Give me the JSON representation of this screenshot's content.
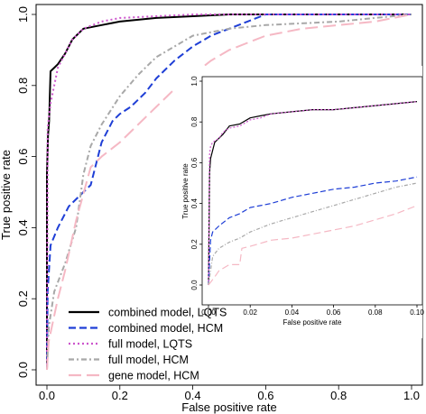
{
  "chart_data": [
    {
      "type": "line",
      "title": "",
      "xlabel": "False positive rate",
      "ylabel": "True positive rate",
      "xlim": [
        0.0,
        1.0
      ],
      "ylim": [
        0.0,
        1.0
      ],
      "xticks": [
        "0.0",
        "0.2",
        "0.4",
        "0.6",
        "0.8",
        "1.0"
      ],
      "yticks": [
        "0.0",
        "0.2",
        "0.4",
        "0.6",
        "0.8",
        "1.0"
      ],
      "grid": false,
      "legend_position": "bottom-left",
      "series": [
        {
          "name": "combined model, LQTS",
          "color": "#000000",
          "dash": "solid",
          "x": [
            0.0,
            0.0,
            0.003,
            0.006,
            0.01,
            0.02,
            0.03,
            0.05,
            0.07,
            0.1,
            0.15,
            0.2,
            0.3,
            0.4,
            0.5,
            0.6,
            0.8,
            1.0
          ],
          "y": [
            0.0,
            0.55,
            0.66,
            0.7,
            0.84,
            0.85,
            0.86,
            0.89,
            0.93,
            0.96,
            0.97,
            0.98,
            0.99,
            0.995,
            1.0,
            1.0,
            1.0,
            1.0
          ]
        },
        {
          "name": "combined model, HCM",
          "color": "#1f3fd6",
          "dash": "8,4",
          "x": [
            0.0,
            0.002,
            0.01,
            0.03,
            0.06,
            0.09,
            0.12,
            0.15,
            0.18,
            0.2,
            0.23,
            0.27,
            0.3,
            0.35,
            0.4,
            0.45,
            0.5,
            0.55,
            0.6,
            0.8,
            1.0
          ],
          "y": [
            0.0,
            0.22,
            0.35,
            0.4,
            0.46,
            0.49,
            0.52,
            0.64,
            0.7,
            0.72,
            0.74,
            0.78,
            0.82,
            0.87,
            0.91,
            0.94,
            0.96,
            0.98,
            1.0,
            1.0,
            1.0
          ]
        },
        {
          "name": "full model, LQTS",
          "color": "#cc55cc",
          "dash": "2,3",
          "x": [
            0.0,
            0.002,
            0.01,
            0.02,
            0.03,
            0.05,
            0.07,
            0.1,
            0.15,
            0.2,
            0.3,
            0.4,
            0.5,
            0.6,
            0.8,
            1.0
          ],
          "y": [
            0.0,
            0.68,
            0.75,
            0.8,
            0.85,
            0.89,
            0.93,
            0.96,
            0.98,
            0.99,
            0.995,
            1.0,
            1.0,
            1.0,
            1.0,
            1.0
          ]
        },
        {
          "name": "full model, HCM",
          "color": "#a8a8a8",
          "dash": "6,3,2,3",
          "x": [
            0.0,
            0.005,
            0.02,
            0.05,
            0.08,
            0.1,
            0.12,
            0.15,
            0.2,
            0.25,
            0.3,
            0.35,
            0.4,
            0.45,
            0.5,
            0.6,
            0.8,
            0.9,
            1.0
          ],
          "y": [
            0.0,
            0.12,
            0.22,
            0.3,
            0.4,
            0.55,
            0.63,
            0.69,
            0.77,
            0.83,
            0.88,
            0.91,
            0.94,
            0.95,
            0.96,
            0.97,
            0.98,
            0.99,
            1.0
          ]
        },
        {
          "name": "gene model, HCM",
          "color": "#f5b8c4",
          "dash": "14,6",
          "x": [
            0.0,
            0.005,
            0.03,
            0.05,
            0.08,
            0.12,
            0.15,
            0.2,
            0.25,
            0.3,
            0.35,
            0.4,
            0.45,
            0.5,
            0.55,
            0.6,
            0.7,
            0.8,
            0.9,
            1.0
          ],
          "y": [
            0.0,
            0.08,
            0.2,
            0.28,
            0.42,
            0.57,
            0.6,
            0.64,
            0.69,
            0.74,
            0.79,
            0.83,
            0.87,
            0.9,
            0.92,
            0.94,
            0.96,
            0.97,
            0.98,
            1.0
          ]
        }
      ]
    },
    {
      "type": "line",
      "title": "",
      "xlabel": "False positive rate",
      "ylabel": "True positive rate",
      "xlim": [
        0.0,
        0.1
      ],
      "ylim": [
        0.0,
        1.0
      ],
      "xticks": [
        "0.00",
        "0.02",
        "0.04",
        "0.06",
        "0.08",
        "0.10"
      ],
      "yticks": [
        "0.0",
        "0.2",
        "0.4",
        "0.6",
        "0.8",
        "1.0"
      ],
      "grid": false,
      "legend_position": "none",
      "series": [
        {
          "name": "combined model, LQTS",
          "color": "#000000",
          "dash": "solid",
          "x": [
            0.0,
            0.0005,
            0.001,
            0.002,
            0.003,
            0.005,
            0.007,
            0.01,
            0.015,
            0.02,
            0.025,
            0.03,
            0.04,
            0.05,
            0.06,
            0.07,
            0.08,
            0.09,
            0.1
          ],
          "y": [
            0.0,
            0.55,
            0.62,
            0.66,
            0.7,
            0.72,
            0.74,
            0.78,
            0.79,
            0.82,
            0.83,
            0.84,
            0.85,
            0.86,
            0.86,
            0.87,
            0.88,
            0.89,
            0.9
          ]
        },
        {
          "name": "combined model, HCM",
          "color": "#1f3fd6",
          "dash": "6,3",
          "x": [
            0.0,
            0.001,
            0.002,
            0.005,
            0.01,
            0.015,
            0.02,
            0.03,
            0.04,
            0.05,
            0.06,
            0.07,
            0.08,
            0.09,
            0.1
          ],
          "y": [
            0.0,
            0.22,
            0.26,
            0.29,
            0.33,
            0.35,
            0.38,
            0.4,
            0.43,
            0.45,
            0.47,
            0.48,
            0.5,
            0.51,
            0.53
          ]
        },
        {
          "name": "full model, LQTS",
          "color": "#cc55cc",
          "dash": "2,2",
          "x": [
            0.0,
            0.0005,
            0.001,
            0.002,
            0.005,
            0.007,
            0.01,
            0.015,
            0.02,
            0.025,
            0.03,
            0.04,
            0.05,
            0.06,
            0.07,
            0.08,
            0.09,
            0.1
          ],
          "y": [
            0.0,
            0.64,
            0.68,
            0.7,
            0.72,
            0.75,
            0.77,
            0.78,
            0.81,
            0.82,
            0.84,
            0.85,
            0.86,
            0.86,
            0.87,
            0.88,
            0.89,
            0.9
          ]
        },
        {
          "name": "full model, HCM",
          "color": "#a8a8a8",
          "dash": "4,2,1,2",
          "x": [
            0.0,
            0.002,
            0.005,
            0.01,
            0.015,
            0.02,
            0.03,
            0.04,
            0.05,
            0.06,
            0.07,
            0.08,
            0.09,
            0.1
          ],
          "y": [
            0.0,
            0.14,
            0.18,
            0.21,
            0.23,
            0.26,
            0.3,
            0.33,
            0.36,
            0.39,
            0.42,
            0.45,
            0.48,
            0.5
          ]
        },
        {
          "name": "gene model, HCM",
          "color": "#f5b8c4",
          "dash": "8,4",
          "x": [
            0.0,
            0.003,
            0.005,
            0.01,
            0.015,
            0.016,
            0.02,
            0.03,
            0.04,
            0.05,
            0.06,
            0.07,
            0.08,
            0.09,
            0.1
          ],
          "y": [
            0.0,
            0.04,
            0.07,
            0.1,
            0.1,
            0.18,
            0.19,
            0.22,
            0.23,
            0.25,
            0.27,
            0.29,
            0.32,
            0.35,
            0.39
          ]
        }
      ]
    }
  ]
}
